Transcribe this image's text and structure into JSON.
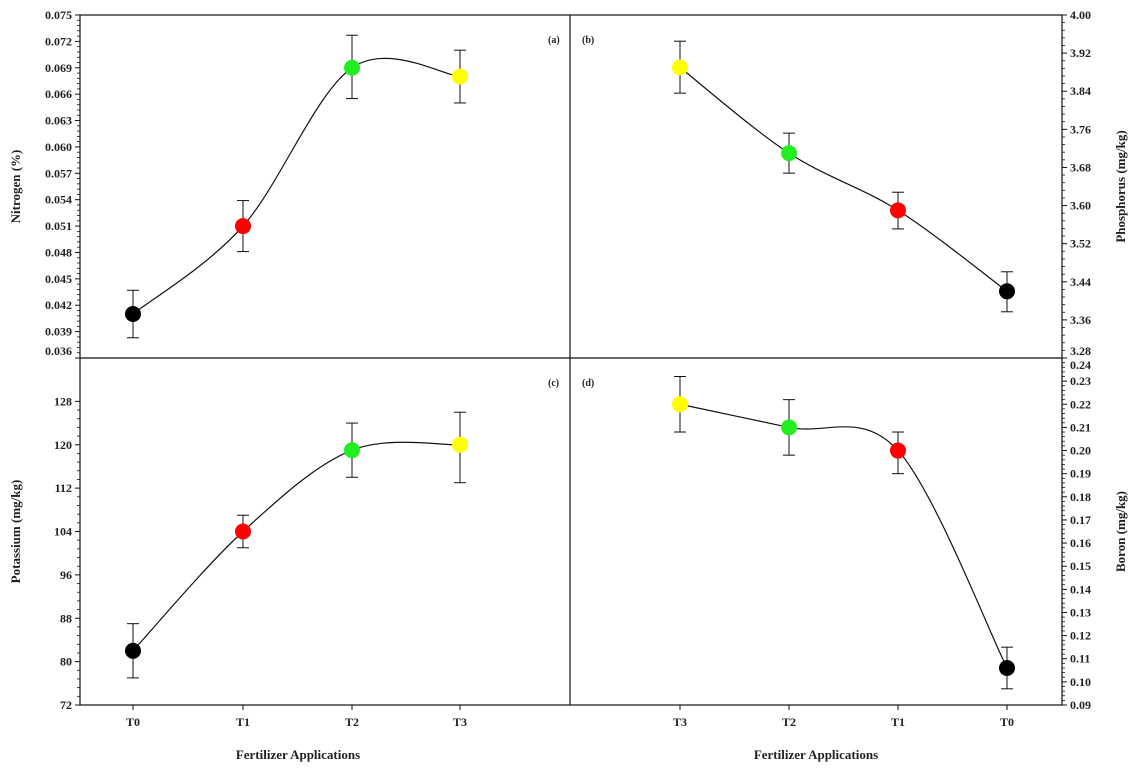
{
  "chart_data": [
    {
      "id": "a",
      "type": "line",
      "panel_label": "(a)",
      "ylabel": "Nitrogen (%)",
      "xlabel": "",
      "axis_side": "left",
      "categories": [
        "T0",
        "T1",
        "T2",
        "T3"
      ],
      "ylim": [
        0.036,
        0.075
      ],
      "yticks": [
        0.036,
        0.039,
        0.042,
        0.045,
        0.048,
        0.051,
        0.054,
        0.057,
        0.06,
        0.063,
        0.066,
        0.069,
        0.072,
        0.075
      ],
      "ytick_decimals": 3,
      "values": [
        0.041,
        0.051,
        0.069,
        0.068
      ],
      "err_low": [
        0.0383,
        0.0481,
        0.0655,
        0.065
      ],
      "err_high": [
        0.0437,
        0.0539,
        0.0727,
        0.071
      ],
      "colors": [
        "#000000",
        "#ff0000",
        "#22ee22",
        "#ffff00"
      ]
    },
    {
      "id": "b",
      "type": "line",
      "panel_label": "(b)",
      "ylabel": "Phosphorus (mg/kg)",
      "xlabel": "",
      "axis_side": "right",
      "categories": [
        "T3",
        "T2",
        "T1",
        "T0"
      ],
      "ylim": [
        3.28,
        4.0
      ],
      "yticks": [
        3.28,
        3.36,
        3.44,
        3.52,
        3.6,
        3.68,
        3.76,
        3.84,
        3.92,
        4.0
      ],
      "ytick_decimals": 2,
      "values": [
        3.89,
        3.71,
        3.59,
        3.42
      ],
      "err_low": [
        3.836,
        3.668,
        3.551,
        3.377
      ],
      "err_high": [
        3.945,
        3.752,
        3.628,
        3.461
      ],
      "colors": [
        "#ffff00",
        "#22ee22",
        "#ff0000",
        "#000000"
      ]
    },
    {
      "id": "c",
      "type": "line",
      "panel_label": "(c)",
      "ylabel": "Potassium (mg/kg)",
      "xlabel": "Fertilizer Applications",
      "axis_side": "left",
      "categories": [
        "T0",
        "T1",
        "T2",
        "T3"
      ],
      "ylim": [
        72,
        136
      ],
      "yticks": [
        72,
        80,
        88,
        96,
        104,
        112,
        120,
        128
      ],
      "ytick_decimals": 0,
      "values": [
        82,
        104,
        119,
        120
      ],
      "err_low": [
        77,
        101,
        114,
        113
      ],
      "err_high": [
        87,
        107,
        124,
        126
      ],
      "colors": [
        "#000000",
        "#ff0000",
        "#22ee22",
        "#ffff00"
      ]
    },
    {
      "id": "d",
      "type": "line",
      "panel_label": "(d)",
      "ylabel": "Boron (mg/kg)",
      "xlabel": "Fertilizer Applications",
      "axis_side": "right",
      "categories": [
        "T3",
        "T2",
        "T1",
        "T0"
      ],
      "ylim": [
        0.09,
        0.24
      ],
      "yticks": [
        0.09,
        0.1,
        0.11,
        0.12,
        0.13,
        0.14,
        0.15,
        0.16,
        0.17,
        0.18,
        0.19,
        0.2,
        0.21,
        0.22,
        0.23,
        0.24
      ],
      "ytick_decimals": 2,
      "values": [
        0.22,
        0.21,
        0.2,
        0.106
      ],
      "err_low": [
        0.208,
        0.198,
        0.19,
        0.097
      ],
      "err_high": [
        0.232,
        0.222,
        0.208,
        0.115
      ],
      "colors": [
        "#ffff00",
        "#22ee22",
        "#ff0000",
        "#000000"
      ]
    }
  ]
}
